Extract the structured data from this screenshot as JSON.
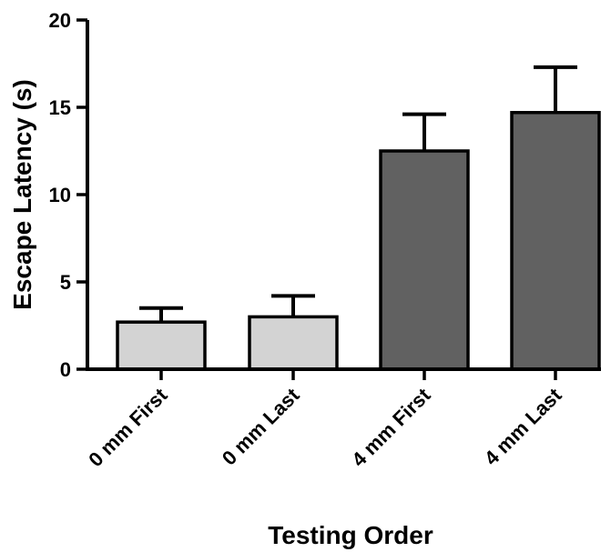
{
  "chart_data": {
    "type": "bar",
    "title": "",
    "xlabel": "Testing Order",
    "ylabel": "Escape Latency (s)",
    "ylim": [
      0,
      20
    ],
    "yticks": [
      0,
      5,
      10,
      15,
      20
    ],
    "grid": false,
    "categories": [
      "0 mm First",
      "0 mm Last",
      "4 mm First",
      "4 mm Last"
    ],
    "values": [
      2.7,
      3.0,
      12.5,
      14.7
    ],
    "errors": [
      0.8,
      1.2,
      2.1,
      2.6
    ],
    "colors": [
      "#d3d3d3",
      "#d3d3d3",
      "#616161",
      "#616161"
    ]
  }
}
